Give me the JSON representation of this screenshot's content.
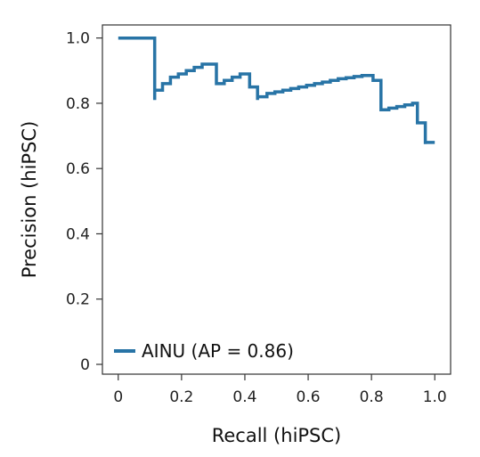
{
  "chart_data": {
    "type": "line",
    "style": "step",
    "xlabel": "Recall (hiPSC)",
    "ylabel": "Precision (hiPSC)",
    "xlim": [
      -0.05,
      1.05
    ],
    "ylim": [
      -0.03,
      1.04
    ],
    "x_ticks": [
      0,
      0.2,
      0.4,
      0.6,
      0.8,
      1.0
    ],
    "x_tick_labels": [
      "0",
      "0.2",
      "0.4",
      "0.6",
      "0.8",
      "1.0"
    ],
    "y_ticks": [
      0,
      0.2,
      0.4,
      0.6,
      0.8,
      1.0
    ],
    "y_tick_labels": [
      "0",
      "0.2",
      "0.4",
      "0.6",
      "0.8",
      "1.0"
    ],
    "grid": false,
    "legend_position": "bottom-left",
    "series": [
      {
        "name": "AINU (AP = 0.86)",
        "color": "#2874a6",
        "points": [
          [
            0.0,
            1.0
          ],
          [
            0.115,
            1.0
          ],
          [
            0.115,
            0.81
          ],
          [
            0.115,
            0.84
          ],
          [
            0.14,
            0.84
          ],
          [
            0.14,
            0.86
          ],
          [
            0.165,
            0.86
          ],
          [
            0.165,
            0.88
          ],
          [
            0.19,
            0.88
          ],
          [
            0.19,
            0.89
          ],
          [
            0.215,
            0.89
          ],
          [
            0.215,
            0.9
          ],
          [
            0.24,
            0.9
          ],
          [
            0.24,
            0.91
          ],
          [
            0.265,
            0.91
          ],
          [
            0.265,
            0.92
          ],
          [
            0.31,
            0.92
          ],
          [
            0.31,
            0.86
          ],
          [
            0.335,
            0.86
          ],
          [
            0.335,
            0.87
          ],
          [
            0.36,
            0.87
          ],
          [
            0.36,
            0.88
          ],
          [
            0.385,
            0.88
          ],
          [
            0.385,
            0.89
          ],
          [
            0.415,
            0.89
          ],
          [
            0.415,
            0.85
          ],
          [
            0.44,
            0.85
          ],
          [
            0.44,
            0.81
          ],
          [
            0.44,
            0.82
          ],
          [
            0.47,
            0.82
          ],
          [
            0.47,
            0.83
          ],
          [
            0.495,
            0.83
          ],
          [
            0.495,
            0.835
          ],
          [
            0.52,
            0.835
          ],
          [
            0.52,
            0.84
          ],
          [
            0.545,
            0.84
          ],
          [
            0.545,
            0.845
          ],
          [
            0.57,
            0.845
          ],
          [
            0.57,
            0.85
          ],
          [
            0.595,
            0.85
          ],
          [
            0.595,
            0.855
          ],
          [
            0.62,
            0.855
          ],
          [
            0.62,
            0.86
          ],
          [
            0.645,
            0.86
          ],
          [
            0.645,
            0.865
          ],
          [
            0.67,
            0.865
          ],
          [
            0.67,
            0.87
          ],
          [
            0.695,
            0.87
          ],
          [
            0.695,
            0.875
          ],
          [
            0.72,
            0.875
          ],
          [
            0.72,
            0.878
          ],
          [
            0.745,
            0.878
          ],
          [
            0.745,
            0.882
          ],
          [
            0.77,
            0.882
          ],
          [
            0.77,
            0.885
          ],
          [
            0.805,
            0.885
          ],
          [
            0.805,
            0.87
          ],
          [
            0.83,
            0.87
          ],
          [
            0.83,
            0.78
          ],
          [
            0.855,
            0.78
          ],
          [
            0.855,
            0.785
          ],
          [
            0.88,
            0.785
          ],
          [
            0.88,
            0.79
          ],
          [
            0.905,
            0.79
          ],
          [
            0.905,
            0.795
          ],
          [
            0.93,
            0.795
          ],
          [
            0.93,
            0.8
          ],
          [
            0.945,
            0.8
          ],
          [
            0.945,
            0.74
          ],
          [
            0.97,
            0.74
          ],
          [
            0.97,
            0.675
          ],
          [
            0.97,
            0.68
          ],
          [
            1.0,
            0.68
          ]
        ]
      }
    ]
  }
}
